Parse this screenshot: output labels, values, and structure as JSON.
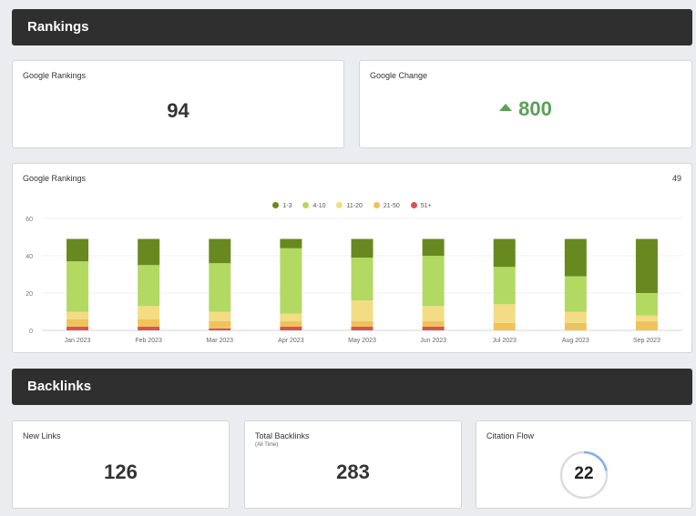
{
  "rankings_section": {
    "title": "Rankings"
  },
  "google_rankings_card": {
    "title": "Google Rankings",
    "value": "94"
  },
  "google_change_card": {
    "title": "Google Change",
    "value": "800",
    "direction": "up",
    "color": "#5aa057"
  },
  "chart_card": {
    "title": "Google Rankings",
    "count": "49"
  },
  "chart_data": {
    "type": "bar",
    "stacked": true,
    "title": "Google Rankings",
    "categories": [
      "Jan 2023",
      "Feb 2023",
      "Mar 2023",
      "Apr 2023",
      "May 2023",
      "Jun 2023",
      "Jul 2023",
      "Aug 2023",
      "Sep 2023"
    ],
    "series": [
      {
        "name": "51+",
        "color": "#d9534f",
        "values": [
          2,
          2,
          1,
          2,
          2,
          2,
          0,
          0,
          0
        ]
      },
      {
        "name": "21-50",
        "color": "#f0c35a",
        "values": [
          4,
          4,
          4,
          3,
          3,
          3,
          4,
          4,
          5
        ]
      },
      {
        "name": "11-20",
        "color": "#f3dc83",
        "values": [
          4,
          7,
          5,
          4,
          11,
          8,
          10,
          6,
          3
        ]
      },
      {
        "name": "4-10",
        "color": "#b2d962",
        "values": [
          27,
          22,
          26,
          35,
          23,
          27,
          20,
          19,
          12
        ]
      },
      {
        "name": "1-3",
        "color": "#67891f",
        "values": [
          12,
          14,
          13,
          5,
          10,
          9,
          15,
          20,
          29
        ]
      }
    ],
    "legend_order": [
      "1-3",
      "4-10",
      "11-20",
      "21-50",
      "51+"
    ],
    "legend_colors": [
      "#67891f",
      "#b2d962",
      "#f3dc83",
      "#f0c35a",
      "#d9534f"
    ],
    "yticks": [
      "0",
      "20",
      "40",
      "60"
    ],
    "ylim": [
      0,
      60
    ],
    "grid": true,
    "legend_position": "top-center"
  },
  "backlinks_section": {
    "title": "Backlinks"
  },
  "new_links_card": {
    "title": "New Links",
    "value": "126"
  },
  "total_backlinks_card": {
    "title": "Total Backlinks",
    "subtitle": "(All Time)",
    "value": "283"
  },
  "citation_flow_card": {
    "title": "Citation Flow",
    "value": "22",
    "progress": 0.22,
    "ring_color": "#7db3e8",
    "track_color": "#dcdcdc"
  }
}
